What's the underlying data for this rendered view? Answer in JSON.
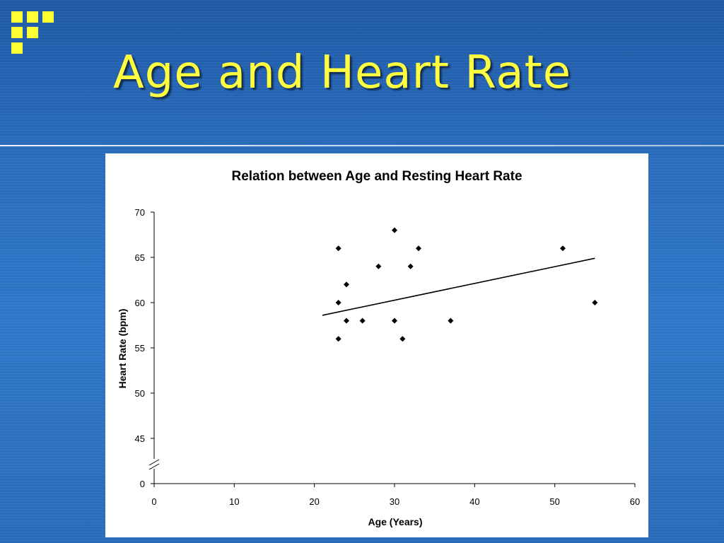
{
  "slide": {
    "title": "Age and Heart Rate",
    "accent_color": "#ffff40",
    "background_color": "#2a6dbf",
    "logo_icon": "yellow-square-grid-icon"
  },
  "chart_data": {
    "type": "scatter",
    "title": "Relation between Age and Resting Heart Rate",
    "xlabel": "Age (Years)",
    "ylabel": "Heart Rate (bpm)",
    "xlim": [
      0,
      60
    ],
    "x_ticks": [
      "0",
      "10",
      "20",
      "30",
      "40",
      "50",
      "60"
    ],
    "y_ticks": [
      "0",
      "45",
      "50",
      "55",
      "60",
      "65",
      "70"
    ],
    "y_axis_break": "between 0 and 45",
    "grid": false,
    "legend": "none",
    "marker": "diamond",
    "points": [
      {
        "x": 23,
        "y": 66
      },
      {
        "x": 23,
        "y": 60
      },
      {
        "x": 23,
        "y": 56
      },
      {
        "x": 24,
        "y": 62
      },
      {
        "x": 24,
        "y": 58
      },
      {
        "x": 26,
        "y": 58
      },
      {
        "x": 28,
        "y": 64
      },
      {
        "x": 30,
        "y": 68
      },
      {
        "x": 30,
        "y": 58
      },
      {
        "x": 31,
        "y": 56
      },
      {
        "x": 32,
        "y": 64
      },
      {
        "x": 33,
        "y": 66
      },
      {
        "x": 37,
        "y": 58
      },
      {
        "x": 51,
        "y": 66
      },
      {
        "x": 55,
        "y": 60
      }
    ],
    "trendline": {
      "type": "linear",
      "start": {
        "x": 21,
        "y": 58.6
      },
      "end": {
        "x": 55,
        "y": 64.9
      }
    }
  }
}
